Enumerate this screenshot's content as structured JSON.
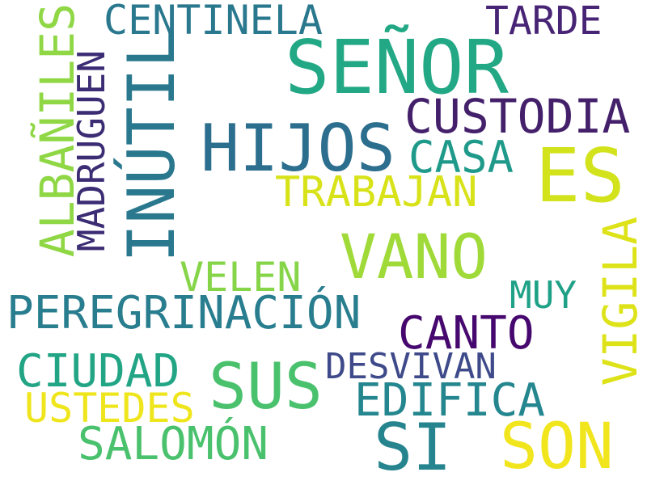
{
  "words": [
    {
      "text": "SEÑOR",
      "color": "#22a884"
    },
    {
      "text": "HIJOS",
      "color": "#2c6e8e"
    },
    {
      "text": "CUSTODIA",
      "color": "#44206b"
    },
    {
      "text": "ES",
      "color": "#d2e21b"
    },
    {
      "text": "CASA",
      "color": "#1f9a8a"
    },
    {
      "text": "TRABAJAN",
      "color": "#d8e219"
    },
    {
      "text": "INÚTIL",
      "color": "#2a788e"
    },
    {
      "text": "VANO",
      "color": "#a0da39"
    },
    {
      "text": "MADRUGUEN",
      "color": "#3b2c74"
    },
    {
      "text": "ALBAÑILES",
      "color": "#8fd744"
    },
    {
      "text": "CENTINELA",
      "color": "#2a788e"
    },
    {
      "text": "TARDE",
      "color": "#482475"
    },
    {
      "text": "VELEN",
      "color": "#86d549"
    },
    {
      "text": "PEREGRINACIÓN",
      "color": "#287d8e"
    },
    {
      "text": "MUY",
      "color": "#1fa187"
    },
    {
      "text": "VIGILA",
      "color": "#dde318"
    },
    {
      "text": "CANTO",
      "color": "#46086e"
    },
    {
      "text": "CIUDAD",
      "color": "#21a585"
    },
    {
      "text": "SUS",
      "color": "#4ac16d"
    },
    {
      "text": "DESVIVAN",
      "color": "#3e4a89"
    },
    {
      "text": "EDIFICA",
      "color": "#24868e"
    },
    {
      "text": "USTEDES",
      "color": "#efe51c"
    },
    {
      "text": "SALOMÓN",
      "color": "#4ac16d"
    },
    {
      "text": "SI",
      "color": "#25848e"
    },
    {
      "text": "SON",
      "color": "#f1e51d"
    }
  ]
}
